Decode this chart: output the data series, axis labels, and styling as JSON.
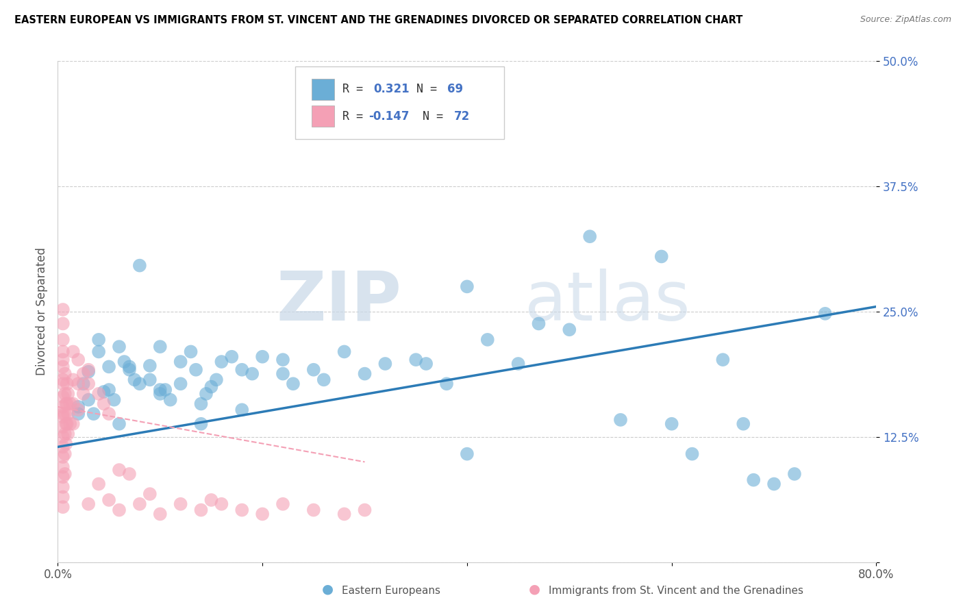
{
  "title": "EASTERN EUROPEAN VS IMMIGRANTS FROM ST. VINCENT AND THE GRENADINES DIVORCED OR SEPARATED CORRELATION CHART",
  "source": "Source: ZipAtlas.com",
  "ylabel": "Divorced or Separated",
  "xlim": [
    0.0,
    0.8
  ],
  "ylim": [
    0.0,
    0.5
  ],
  "yticks": [
    0.0,
    0.125,
    0.25,
    0.375,
    0.5
  ],
  "ytick_labels": [
    "",
    "12.5%",
    "25.0%",
    "37.5%",
    "50.0%"
  ],
  "xticks": [
    0.0,
    0.2,
    0.4,
    0.6,
    0.8
  ],
  "xtick_labels": [
    "0.0%",
    "",
    "",
    "",
    "80.0%"
  ],
  "blue_color": "#6baed6",
  "pink_color": "#f4a0b5",
  "line_blue_color": "#2c7bb6",
  "line_pink_color": "#f4a0b5",
  "watermark_zip": "ZIP",
  "watermark_atlas": "atlas",
  "blue_scatter": [
    [
      0.02,
      0.155
    ],
    [
      0.02,
      0.148
    ],
    [
      0.025,
      0.178
    ],
    [
      0.03,
      0.19
    ],
    [
      0.035,
      0.148
    ],
    [
      0.04,
      0.21
    ],
    [
      0.04,
      0.222
    ],
    [
      0.045,
      0.17
    ],
    [
      0.05,
      0.195
    ],
    [
      0.05,
      0.172
    ],
    [
      0.055,
      0.162
    ],
    [
      0.06,
      0.215
    ],
    [
      0.065,
      0.2
    ],
    [
      0.07,
      0.195
    ],
    [
      0.07,
      0.192
    ],
    [
      0.075,
      0.182
    ],
    [
      0.08,
      0.296
    ],
    [
      0.08,
      0.178
    ],
    [
      0.09,
      0.182
    ],
    [
      0.09,
      0.196
    ],
    [
      0.1,
      0.172
    ],
    [
      0.1,
      0.168
    ],
    [
      0.1,
      0.215
    ],
    [
      0.105,
      0.172
    ],
    [
      0.11,
      0.162
    ],
    [
      0.12,
      0.178
    ],
    [
      0.12,
      0.2
    ],
    [
      0.13,
      0.21
    ],
    [
      0.135,
      0.192
    ],
    [
      0.14,
      0.158
    ],
    [
      0.145,
      0.168
    ],
    [
      0.15,
      0.175
    ],
    [
      0.155,
      0.182
    ],
    [
      0.16,
      0.2
    ],
    [
      0.17,
      0.205
    ],
    [
      0.18,
      0.192
    ],
    [
      0.19,
      0.188
    ],
    [
      0.2,
      0.205
    ],
    [
      0.22,
      0.188
    ],
    [
      0.22,
      0.202
    ],
    [
      0.23,
      0.178
    ],
    [
      0.25,
      0.192
    ],
    [
      0.26,
      0.182
    ],
    [
      0.28,
      0.21
    ],
    [
      0.3,
      0.188
    ],
    [
      0.32,
      0.198
    ],
    [
      0.35,
      0.202
    ],
    [
      0.36,
      0.198
    ],
    [
      0.38,
      0.178
    ],
    [
      0.42,
      0.222
    ],
    [
      0.45,
      0.198
    ],
    [
      0.5,
      0.232
    ],
    [
      0.55,
      0.142
    ],
    [
      0.52,
      0.325
    ],
    [
      0.59,
      0.305
    ],
    [
      0.4,
      0.275
    ],
    [
      0.47,
      0.238
    ],
    [
      0.18,
      0.152
    ],
    [
      0.14,
      0.138
    ],
    [
      0.06,
      0.138
    ],
    [
      0.03,
      0.162
    ],
    [
      0.6,
      0.138
    ],
    [
      0.65,
      0.202
    ],
    [
      0.68,
      0.082
    ],
    [
      0.7,
      0.078
    ],
    [
      0.72,
      0.088
    ],
    [
      0.67,
      0.138
    ],
    [
      0.75,
      0.248
    ],
    [
      0.62,
      0.108
    ],
    [
      0.4,
      0.108
    ]
  ],
  "pink_scatter": [
    [
      0.005,
      0.21
    ],
    [
      0.005,
      0.195
    ],
    [
      0.005,
      0.178
    ],
    [
      0.005,
      0.165
    ],
    [
      0.005,
      0.155
    ],
    [
      0.005,
      0.145
    ],
    [
      0.005,
      0.135
    ],
    [
      0.005,
      0.125
    ],
    [
      0.005,
      0.115
    ],
    [
      0.005,
      0.105
    ],
    [
      0.005,
      0.095
    ],
    [
      0.005,
      0.085
    ],
    [
      0.005,
      0.075
    ],
    [
      0.005,
      0.065
    ],
    [
      0.005,
      0.055
    ],
    [
      0.007,
      0.188
    ],
    [
      0.007,
      0.168
    ],
    [
      0.007,
      0.148
    ],
    [
      0.007,
      0.128
    ],
    [
      0.007,
      0.108
    ],
    [
      0.007,
      0.088
    ],
    [
      0.008,
      0.158
    ],
    [
      0.008,
      0.138
    ],
    [
      0.008,
      0.118
    ],
    [
      0.009,
      0.178
    ],
    [
      0.009,
      0.158
    ],
    [
      0.009,
      0.138
    ],
    [
      0.01,
      0.168
    ],
    [
      0.01,
      0.148
    ],
    [
      0.01,
      0.128
    ],
    [
      0.012,
      0.158
    ],
    [
      0.012,
      0.138
    ],
    [
      0.015,
      0.21
    ],
    [
      0.015,
      0.182
    ],
    [
      0.015,
      0.158
    ],
    [
      0.015,
      0.138
    ],
    [
      0.02,
      0.202
    ],
    [
      0.02,
      0.178
    ],
    [
      0.02,
      0.152
    ],
    [
      0.025,
      0.188
    ],
    [
      0.025,
      0.168
    ],
    [
      0.03,
      0.178
    ],
    [
      0.03,
      0.192
    ],
    [
      0.03,
      0.058
    ],
    [
      0.04,
      0.168
    ],
    [
      0.04,
      0.078
    ],
    [
      0.045,
      0.158
    ],
    [
      0.05,
      0.148
    ],
    [
      0.05,
      0.062
    ],
    [
      0.06,
      0.092
    ],
    [
      0.06,
      0.052
    ],
    [
      0.07,
      0.088
    ],
    [
      0.08,
      0.058
    ],
    [
      0.09,
      0.068
    ],
    [
      0.1,
      0.048
    ],
    [
      0.12,
      0.058
    ],
    [
      0.14,
      0.052
    ],
    [
      0.15,
      0.062
    ],
    [
      0.16,
      0.058
    ],
    [
      0.18,
      0.052
    ],
    [
      0.2,
      0.048
    ],
    [
      0.22,
      0.058
    ],
    [
      0.25,
      0.052
    ],
    [
      0.28,
      0.048
    ],
    [
      0.3,
      0.052
    ],
    [
      0.005,
      0.148
    ],
    [
      0.005,
      0.182
    ],
    [
      0.005,
      0.202
    ],
    [
      0.005,
      0.222
    ],
    [
      0.005,
      0.238
    ],
    [
      0.005,
      0.252
    ]
  ],
  "blue_line_x": [
    0.0,
    0.8
  ],
  "blue_line_y": [
    0.115,
    0.255
  ],
  "pink_line_x": [
    0.0,
    0.3
  ],
  "pink_line_y": [
    0.155,
    0.1
  ]
}
